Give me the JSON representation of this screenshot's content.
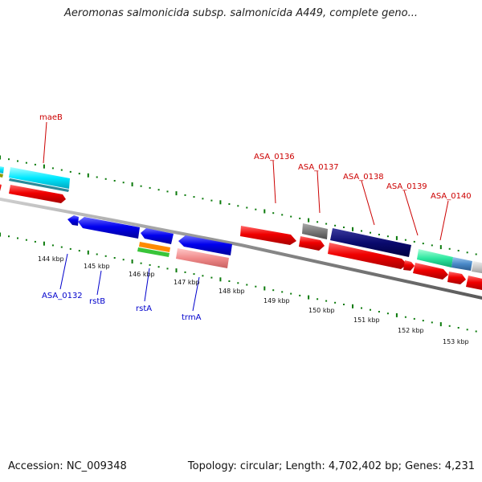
{
  "header": {
    "title": "Aeromonas salmonicida subsp. salmonicida A449, complete geno..."
  },
  "footer": {
    "accession": "Accession: NC_009348",
    "summary": "Topology: circular; Length: 4,702,402 bp; Genes: 4,231"
  },
  "scale": {
    "ticks": [
      "144 kbp",
      "145 kbp",
      "146 kbp",
      "147 kbp",
      "148 kbp",
      "149 kbp",
      "150 kbp",
      "151 kbp",
      "152 kbp",
      "153 kbp"
    ]
  },
  "labels": {
    "maeB": "maeB",
    "ASA_0136": "ASA_0136",
    "ASA_0137": "ASA_0137",
    "ASA_0138": "ASA_0138",
    "ASA_0139": "ASA_0139",
    "ASA_0140": "ASA_0140",
    "ASA_0132": "ASA_0132",
    "rstB": "rstB",
    "rstA": "rstA",
    "trmA": "trmA"
  },
  "colors": {
    "forward": "#ff0000",
    "reverse": "#0000ff",
    "label_forward": "#cc0000",
    "label_reverse": "#0000cc",
    "tick_marks": "#0a7a0a",
    "backbone": "#888888"
  }
}
